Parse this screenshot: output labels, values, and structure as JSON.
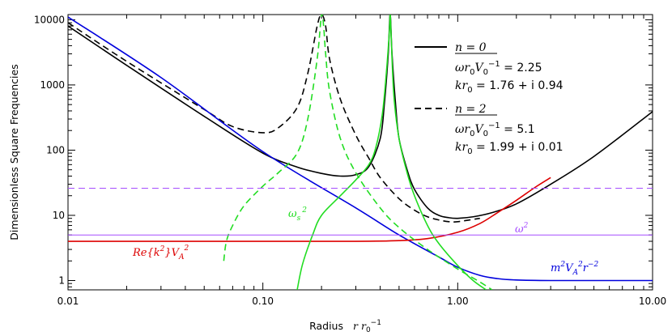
{
  "chart_data": {
    "type": "line",
    "title": "",
    "xlabel": "Radius",
    "xlabel_math": "r r",
    "xlabel_sub": "0",
    "xlabel_sup": "−1",
    "ylabel": "Dimensionless Square Frequencies",
    "xscale": "log",
    "yscale": "log",
    "xlim": [
      0.01,
      10
    ],
    "ylim": [
      0.72,
      12000
    ],
    "x_tick_labels": [
      "0.01",
      "0.10",
      "1.00",
      "10.00"
    ],
    "x_ticks": [
      0.01,
      0.1,
      1,
      10
    ],
    "y_tick_labels": [
      "1",
      "10",
      "100",
      "1000",
      "10000"
    ],
    "y_ticks": [
      1,
      10,
      100,
      1000,
      10000
    ],
    "series": [
      {
        "id": "n0_solid",
        "color": "#000000",
        "dash": "none",
        "x": [
          0.01,
          0.02,
          0.05,
          0.1,
          0.15,
          0.2,
          0.25,
          0.3,
          0.35,
          0.4,
          0.42,
          0.44,
          0.45,
          0.46,
          0.48,
          0.5,
          0.55,
          0.6,
          0.7,
          0.8,
          0.9,
          1.0,
          1.2,
          1.5,
          2.0,
          3.0,
          5.0,
          10.0
        ],
        "y": [
          8000,
          2000,
          330,
          90,
          55,
          44,
          40,
          42,
          56,
          150,
          500,
          3000,
          12000,
          3000,
          500,
          150,
          50,
          25,
          13,
          10,
          9.2,
          9.0,
          9.5,
          11,
          15,
          30,
          80,
          390
        ]
      },
      {
        "id": "n2_dashed",
        "color": "#000000",
        "dash": "8 5",
        "x": [
          0.01,
          0.02,
          0.05,
          0.07,
          0.1,
          0.12,
          0.15,
          0.17,
          0.19,
          0.2,
          0.21,
          0.22,
          0.25,
          0.3,
          0.35,
          0.4,
          0.5,
          0.6,
          0.7,
          0.8,
          0.9,
          1.0,
          1.3
        ],
        "y": [
          9000,
          2300,
          420,
          230,
          185,
          220,
          450,
          1500,
          8000,
          12000,
          8000,
          2500,
          600,
          170,
          75,
          38,
          18,
          12,
          9.5,
          8.5,
          8.0,
          8.0,
          9.0
        ]
      },
      {
        "id": "alfven",
        "color": "#0000dd",
        "dash": "none",
        "x": [
          0.01,
          0.03,
          0.1,
          0.3,
          0.5,
          0.8,
          1.0,
          1.3,
          1.6,
          2.0,
          3.0,
          5.0,
          10.0
        ],
        "y": [
          11000,
          1300,
          95,
          13,
          5.0,
          2.3,
          1.6,
          1.2,
          1.07,
          1.02,
          1.0,
          1.0,
          1.0
        ]
      },
      {
        "id": "rek2va2",
        "color": "#dd0000",
        "dash": "none",
        "x": [
          0.01,
          0.1,
          0.3,
          0.5,
          0.7,
          1.0,
          1.3,
          1.6,
          2.0,
          2.5,
          3.0
        ],
        "y": [
          4.0,
          4.0,
          4.0,
          4.1,
          4.4,
          5.5,
          7.5,
          11,
          17,
          27,
          38
        ]
      },
      {
        "id": "omega_s2_solid",
        "color": "#22dd22",
        "dash": "none",
        "x": [
          0.15,
          0.16,
          0.18,
          0.2,
          0.25,
          0.3,
          0.35,
          0.38,
          0.41,
          0.43,
          0.445,
          0.45,
          0.455,
          0.47,
          0.5,
          0.55,
          0.6,
          0.7,
          0.8,
          1.0,
          1.2,
          1.4
        ],
        "y": [
          0.72,
          1.8,
          5.0,
          10,
          20,
          35,
          60,
          110,
          350,
          1500,
          6000,
          12000,
          6000,
          700,
          150,
          45,
          20,
          7,
          3.7,
          1.7,
          1.0,
          0.72
        ]
      },
      {
        "id": "omega_s2_dashed",
        "color": "#22dd22",
        "dash": "8 5",
        "x": [
          0.063,
          0.065,
          0.07,
          0.08,
          0.1,
          0.12,
          0.15,
          0.17,
          0.19,
          0.2,
          0.205,
          0.21,
          0.22,
          0.25,
          0.3,
          0.4,
          0.5,
          0.7,
          1.0,
          1.3,
          1.5
        ],
        "y": [
          2.0,
          4.0,
          7.0,
          14,
          28,
          45,
          90,
          300,
          2500,
          12000,
          8000,
          3000,
          800,
          150,
          45,
          13,
          6.5,
          3.0,
          1.5,
          0.95,
          0.72
        ]
      },
      {
        "id": "omega2",
        "color": "#a64dff",
        "dash": "none",
        "x": [
          0.01,
          10.0
        ],
        "y": [
          5.0,
          5.0
        ]
      },
      {
        "id": "omega2_n2",
        "color": "#a64dff",
        "dash": "8 5",
        "x": [
          0.01,
          10.0
        ],
        "y": [
          26,
          26
        ]
      }
    ],
    "legend": {
      "placement": "top-right",
      "n0_label": "n = 0",
      "n0_omega": "ωr",
      "n0_omega_sub1": "0",
      "n0_omega_v": "V",
      "n0_omega_sub2": "0",
      "n0_omega_sup": "−1",
      "n0_omega_val": " = 2.25",
      "n0_kr": "kr",
      "n0_kr_sub": "0",
      "n0_kr_val": " = 1.76 + i 0.94",
      "n2_label": "n = 2",
      "n2_omega_val": " = 5.1",
      "n2_kr_val": " = 1.99 + i 0.01"
    },
    "annotations": {
      "rek2": "Re{k",
      "rek2_sup": "2",
      "rek2_close": "}V",
      "rek2_sub": "A",
      "rek2_sup2": "2",
      "omega_s": "ω",
      "omega_s_sub": "s",
      "omega_s_sup": "2",
      "omega2": "ω",
      "omega2_sup": "2",
      "m2": "m",
      "m2_sup": "2",
      "m2_v": "V",
      "m2_sub": "A",
      "m2_sup2": "2",
      "m2_r": "r",
      "m2_sup3": "−2"
    }
  }
}
